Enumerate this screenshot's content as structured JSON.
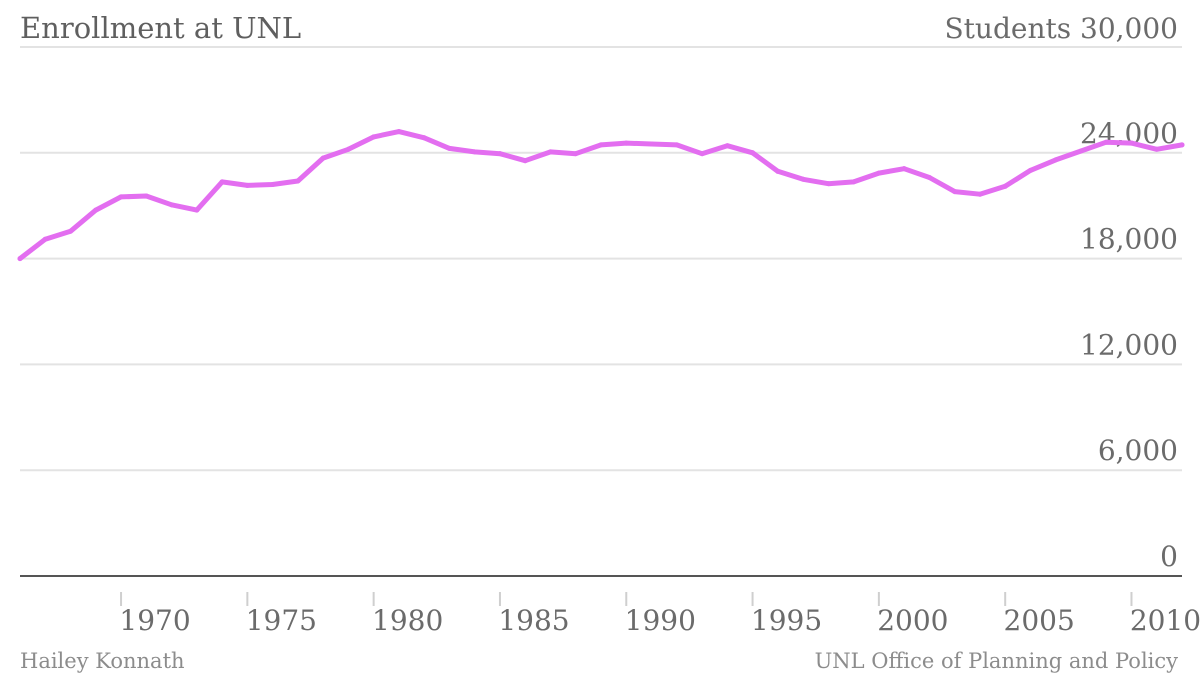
{
  "chart_data": {
    "type": "line",
    "title": "Enrollment at UNL",
    "ylabel": "Students",
    "ylim": [
      0,
      30000
    ],
    "yticks": [
      "0",
      "6,000",
      "12,000",
      "18,000",
      "24,000",
      "30,000"
    ],
    "ytick_values": [
      0,
      6000,
      12000,
      18000,
      24000,
      30000
    ],
    "xticks": [
      "1970",
      "1975",
      "1980",
      "1985",
      "1990",
      "1995",
      "2000",
      "2005",
      "2010"
    ],
    "xtick_values": [
      1970,
      1975,
      1980,
      1985,
      1990,
      1995,
      2000,
      2005,
      2010
    ],
    "xlim": [
      1966,
      2012
    ],
    "grid": true,
    "line_color": "#e36ef0",
    "x": [
      1966,
      1967,
      1968,
      1969,
      1970,
      1971,
      1972,
      1973,
      1974,
      1975,
      1976,
      1977,
      1978,
      1979,
      1980,
      1981,
      1982,
      1983,
      1984,
      1985,
      1986,
      1987,
      1988,
      1989,
      1990,
      1991,
      1992,
      1993,
      1994,
      1995,
      1996,
      1997,
      1998,
      1999,
      2000,
      2001,
      2002,
      2003,
      2004,
      2005,
      2006,
      2007,
      2008,
      2009,
      2010,
      2011,
      2012
    ],
    "series": [
      {
        "values": [
          18000,
          19100,
          19550,
          20750,
          21500,
          21550,
          21050,
          20750,
          22350,
          22150,
          22200,
          22400,
          23700,
          24200,
          24900,
          25200,
          24850,
          24250,
          24050,
          23950,
          23550,
          24050,
          23950,
          24450,
          24550,
          24500,
          24450,
          23950,
          24400,
          24000,
          22950,
          22500,
          22250,
          22350,
          22850,
          23100,
          22600,
          21800,
          21650,
          22100,
          23000,
          23600,
          24100,
          24600,
          24550,
          24200,
          24450
        ]
      }
    ]
  },
  "footer": {
    "left": "Hailey Konnath",
    "right": "UNL Office of Planning and Policy"
  }
}
